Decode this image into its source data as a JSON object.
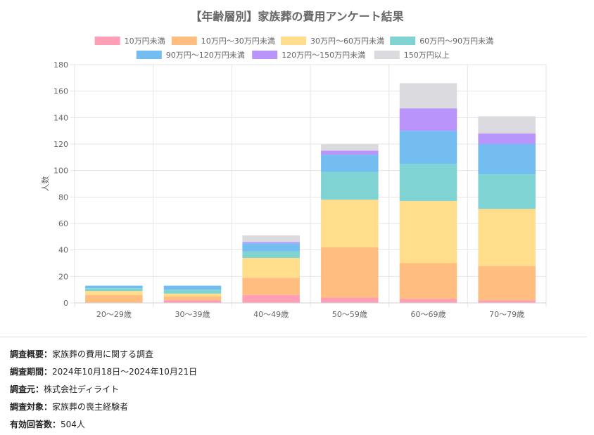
{
  "chart_data": {
    "type": "bar",
    "stacked": true,
    "title": "【年齢層別】家族葬の費用アンケート結果",
    "ylabel": "人数",
    "xlabel": "",
    "ylim": [
      0,
      180
    ],
    "yticks": [
      0,
      20,
      40,
      60,
      80,
      100,
      120,
      140,
      160,
      180
    ],
    "grid": true,
    "legend_position": "top",
    "categories": [
      "20〜29歳",
      "30〜39歳",
      "40〜49歳",
      "50〜59歳",
      "60〜69歳",
      "70〜79歳"
    ],
    "series": [
      {
        "name": "10万円未満",
        "color": "#ff9eb5",
        "values": [
          0,
          2,
          6,
          4,
          3,
          2
        ]
      },
      {
        "name": "10万円〜30万円未満",
        "color": "#ffbd7f",
        "values": [
          6,
          3,
          13,
          38,
          27,
          26
        ]
      },
      {
        "name": "30万円〜60万円未満",
        "color": "#ffdd8a",
        "values": [
          3,
          2,
          15,
          36,
          47,
          43
        ]
      },
      {
        "name": "60万円〜90万円未満",
        "color": "#80d3d3",
        "values": [
          2,
          3,
          5,
          21,
          28,
          26
        ]
      },
      {
        "name": "90万円〜120万円未満",
        "color": "#74bdf0",
        "values": [
          2,
          3,
          6,
          13,
          25,
          23
        ]
      },
      {
        "name": "120万円〜150万円未満",
        "color": "#b894fb",
        "values": [
          0,
          0,
          1,
          3,
          17,
          8
        ]
      },
      {
        "name": "150万円以上",
        "color": "#dadadf",
        "values": [
          0,
          0,
          5,
          5,
          19,
          13
        ]
      }
    ]
  },
  "survey": {
    "overview_label": "調査概要：",
    "overview": "家族葬の費用に関する調査",
    "period_label": "調査期間：",
    "period": "2024年10月18日〜2024年10月21日",
    "source_label": "調査元：",
    "source": "株式会社ディライト",
    "target_label": "調査対象：",
    "target": "家族葬の喪主経験者",
    "responses_label": "有効回答数：",
    "responses": "504人"
  }
}
